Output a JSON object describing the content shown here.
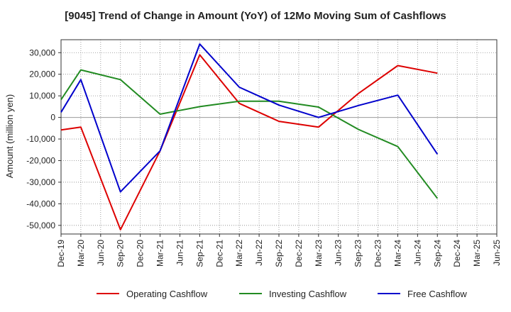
{
  "chart_data": {
    "type": "line",
    "title": "[9045]  Trend of Change in Amount (YoY) of 12Mo Moving Sum of Cashflows",
    "xlabel": "",
    "ylabel": "Amount (million yen)",
    "ylim": [
      -54000,
      36000
    ],
    "yticks": [
      30000,
      20000,
      10000,
      0,
      -10000,
      -20000,
      -30000,
      -40000,
      -50000
    ],
    "ytick_labels": [
      "30,000",
      "20,000",
      "10,000",
      "0",
      "-10,000",
      "-20,000",
      "-30,000",
      "-40,000",
      "-50,000"
    ],
    "categories": [
      "Dec-19",
      "Mar-20",
      "Jun-20",
      "Sep-20",
      "Dec-20",
      "Mar-21",
      "Jun-21",
      "Sep-21",
      "Dec-21",
      "Mar-22",
      "Jun-22",
      "Sep-22",
      "Dec-22",
      "Mar-23",
      "Jun-23",
      "Sep-23",
      "Dec-23",
      "Mar-24",
      "Jun-24",
      "Sep-24",
      "Dec-24",
      "Mar-25"
    ],
    "x_labels": [
      "Dec-19",
      "Mar-20",
      "Jun-20",
      "Sep-20",
      "Dec-20",
      "Mar-21",
      "Jun-21",
      "Sep-21",
      "Dec-21",
      "Mar-22",
      "Jun-22",
      "Sep-22",
      "Dec-22",
      "Mar-23",
      "Jun-23",
      "Sep-23",
      "Dec-23",
      "Mar-24",
      "Jun-24",
      "Sep-24",
      "Dec-24",
      "Mar-25",
      "Jun-25"
    ],
    "grid": true,
    "legend_position": "bottom",
    "series": [
      {
        "name": "Operating Cashflow",
        "color": "#dd0000",
        "values": [
          -5800,
          -4500,
          null,
          -52000,
          null,
          -15500,
          null,
          29000,
          null,
          6500,
          null,
          -1800,
          null,
          -4500,
          null,
          11000,
          null,
          24000,
          null,
          20500,
          null,
          null
        ]
      },
      {
        "name": "Investing Cashflow",
        "color": "#228B22",
        "values": [
          8200,
          22000,
          null,
          17500,
          null,
          1500,
          null,
          5000,
          null,
          7500,
          null,
          7500,
          null,
          4800,
          null,
          -5500,
          null,
          -13500,
          null,
          -37500,
          null,
          null
        ]
      },
      {
        "name": "Free Cashflow",
        "color": "#0000cc",
        "values": [
          2400,
          17500,
          null,
          -34500,
          null,
          -15500,
          null,
          34000,
          null,
          14000,
          null,
          5700,
          null,
          0,
          null,
          5500,
          null,
          10300,
          null,
          -17000,
          null,
          null
        ]
      }
    ]
  }
}
